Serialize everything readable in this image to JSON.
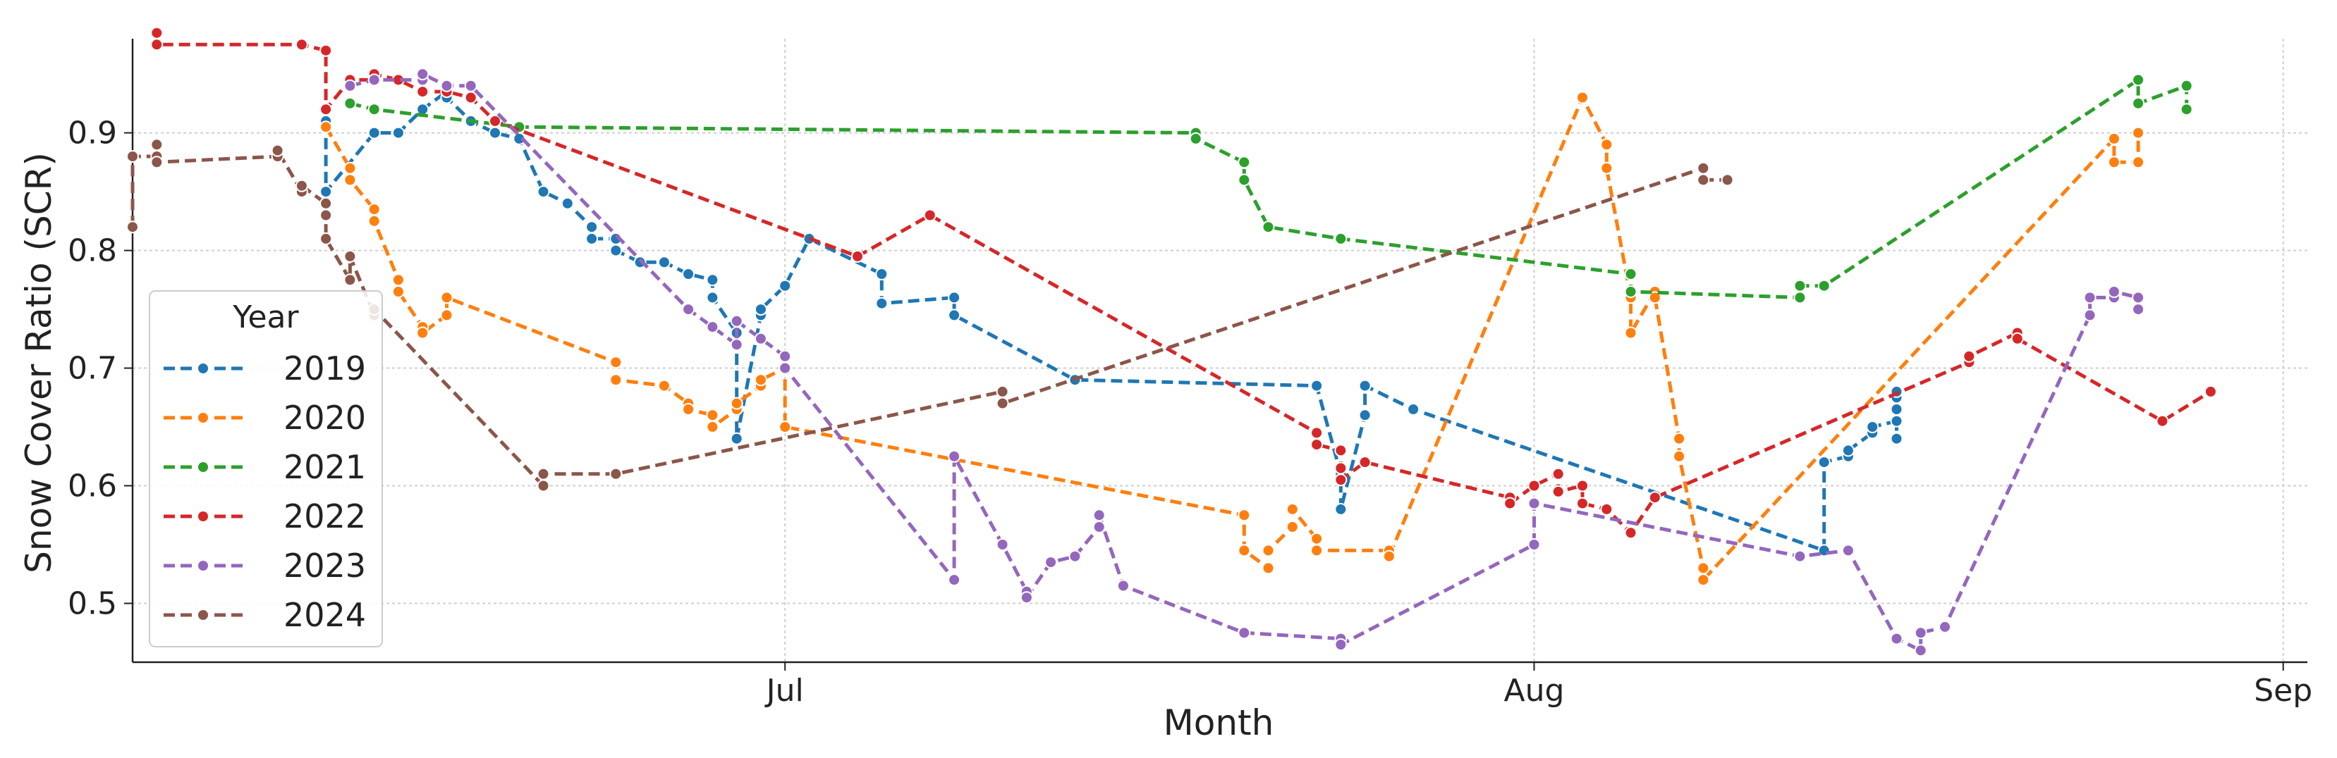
{
  "chart_data": {
    "type": "line",
    "xlabel": "Month",
    "ylabel": "Snow Cover Ratio (SCR)",
    "x_is_date": true,
    "xlim": [
      "06-04",
      "09-02"
    ],
    "ylim": [
      0.45,
      0.98
    ],
    "x_ticks": [
      {
        "x": "07-01",
        "label": "Jul"
      },
      {
        "x": "08-01",
        "label": "Aug"
      },
      {
        "x": "09-01",
        "label": "Sep"
      }
    ],
    "y_ticks": [
      0.5,
      0.6,
      0.7,
      0.8,
      0.9
    ],
    "grid": true,
    "legend": {
      "title": "Year",
      "position": "left"
    },
    "series": [
      {
        "name": "2019",
        "color": "#1f77b4",
        "points": [
          [
            "06-12",
            0.91
          ],
          [
            "06-12",
            0.85
          ],
          [
            "06-14",
            0.9
          ],
          [
            "06-15",
            0.9
          ],
          [
            "06-16",
            0.92
          ],
          [
            "06-17",
            0.935
          ],
          [
            "06-17",
            0.93
          ],
          [
            "06-18",
            0.91
          ],
          [
            "06-19",
            0.9
          ],
          [
            "06-20",
            0.895
          ],
          [
            "06-21",
            0.85
          ],
          [
            "06-22",
            0.84
          ],
          [
            "06-23",
            0.82
          ],
          [
            "06-23",
            0.81
          ],
          [
            "06-24",
            0.81
          ],
          [
            "06-24",
            0.8
          ],
          [
            "06-25",
            0.79
          ],
          [
            "06-26",
            0.79
          ],
          [
            "06-27",
            0.78
          ],
          [
            "06-28",
            0.775
          ],
          [
            "06-28",
            0.76
          ],
          [
            "06-29",
            0.73
          ],
          [
            "06-29",
            0.64
          ],
          [
            "06-30",
            0.745
          ],
          [
            "06-30",
            0.75
          ],
          [
            "07-01",
            0.77
          ],
          [
            "07-02",
            0.81
          ],
          [
            "07-05",
            0.78
          ],
          [
            "07-05",
            0.755
          ],
          [
            "07-08",
            0.76
          ],
          [
            "07-08",
            0.745
          ],
          [
            "07-13",
            0.69
          ],
          [
            "07-23",
            0.685
          ],
          [
            "07-24",
            0.61
          ],
          [
            "07-24",
            0.58
          ],
          [
            "07-25",
            0.66
          ],
          [
            "07-25",
            0.685
          ],
          [
            "07-27",
            0.665
          ],
          [
            "08-13",
            0.545
          ],
          [
            "08-13",
            0.62
          ],
          [
            "08-14",
            0.625
          ],
          [
            "08-14",
            0.63
          ],
          [
            "08-15",
            0.645
          ],
          [
            "08-15",
            0.65
          ],
          [
            "08-16",
            0.655
          ],
          [
            "08-16",
            0.665
          ],
          [
            "08-16",
            0.675
          ],
          [
            "08-16",
            0.68
          ],
          [
            "08-16",
            0.64
          ]
        ]
      },
      {
        "name": "2020",
        "color": "#ff7f0e",
        "points": [
          [
            "06-12",
            0.905
          ],
          [
            "06-13",
            0.87
          ],
          [
            "06-13",
            0.86
          ],
          [
            "06-14",
            0.835
          ],
          [
            "06-14",
            0.825
          ],
          [
            "06-15",
            0.775
          ],
          [
            "06-15",
            0.765
          ],
          [
            "06-16",
            0.735
          ],
          [
            "06-16",
            0.73
          ],
          [
            "06-17",
            0.745
          ],
          [
            "06-17",
            0.76
          ],
          [
            "06-24",
            0.705
          ],
          [
            "06-24",
            0.69
          ],
          [
            "06-26",
            0.685
          ],
          [
            "06-27",
            0.67
          ],
          [
            "06-27",
            0.665
          ],
          [
            "06-28",
            0.66
          ],
          [
            "06-28",
            0.65
          ],
          [
            "06-29",
            0.665
          ],
          [
            "06-29",
            0.67
          ],
          [
            "06-30",
            0.685
          ],
          [
            "06-30",
            0.69
          ],
          [
            "07-01",
            0.7
          ],
          [
            "07-01",
            0.65
          ],
          [
            "07-20",
            0.575
          ],
          [
            "07-20",
            0.545
          ],
          [
            "07-21",
            0.53
          ],
          [
            "07-21",
            0.545
          ],
          [
            "07-22",
            0.565
          ],
          [
            "07-22",
            0.58
          ],
          [
            "07-23",
            0.555
          ],
          [
            "07-23",
            0.545
          ],
          [
            "07-26",
            0.545
          ],
          [
            "07-26",
            0.54
          ],
          [
            "08-03",
            0.93
          ],
          [
            "08-04",
            0.89
          ],
          [
            "08-04",
            0.87
          ],
          [
            "08-05",
            0.76
          ],
          [
            "08-05",
            0.73
          ],
          [
            "08-06",
            0.765
          ],
          [
            "08-06",
            0.76
          ],
          [
            "08-07",
            0.64
          ],
          [
            "08-07",
            0.625
          ],
          [
            "08-08",
            0.53
          ],
          [
            "08-08",
            0.52
          ],
          [
            "08-25",
            0.895
          ],
          [
            "08-25",
            0.875
          ],
          [
            "08-26",
            0.875
          ],
          [
            "08-26",
            0.9
          ]
        ]
      },
      {
        "name": "2021",
        "color": "#2ca02c",
        "points": [
          [
            "06-13",
            0.925
          ],
          [
            "06-14",
            0.92
          ],
          [
            "06-20",
            0.905
          ],
          [
            "07-18",
            0.9
          ],
          [
            "07-18",
            0.895
          ],
          [
            "07-20",
            0.875
          ],
          [
            "07-20",
            0.86
          ],
          [
            "07-21",
            0.82
          ],
          [
            "07-24",
            0.81
          ],
          [
            "08-05",
            0.78
          ],
          [
            "08-05",
            0.765
          ],
          [
            "08-12",
            0.76
          ],
          [
            "08-12",
            0.77
          ],
          [
            "08-13",
            0.77
          ],
          [
            "08-26",
            0.945
          ],
          [
            "08-26",
            0.925
          ],
          [
            "08-28",
            0.94
          ],
          [
            "08-28",
            0.92
          ]
        ]
      },
      {
        "name": "2022",
        "color": "#d62728",
        "points": [
          [
            "06-05",
            0.985
          ],
          [
            "06-05",
            0.975
          ],
          [
            "06-11",
            0.975
          ],
          [
            "06-12",
            0.97
          ],
          [
            "06-12",
            0.92
          ],
          [
            "06-13",
            0.945
          ],
          [
            "06-14",
            0.945
          ],
          [
            "06-14",
            0.95
          ],
          [
            "06-15",
            0.945
          ],
          [
            "06-16",
            0.935
          ],
          [
            "06-17",
            0.935
          ],
          [
            "06-18",
            0.93
          ],
          [
            "06-19",
            0.91
          ],
          [
            "07-04",
            0.795
          ],
          [
            "07-07",
            0.83
          ],
          [
            "07-23",
            0.645
          ],
          [
            "07-23",
            0.635
          ],
          [
            "07-24",
            0.63
          ],
          [
            "07-24",
            0.615
          ],
          [
            "07-24",
            0.605
          ],
          [
            "07-25",
            0.62
          ],
          [
            "07-31",
            0.59
          ],
          [
            "07-31",
            0.585
          ],
          [
            "08-01",
            0.6
          ],
          [
            "08-02",
            0.61
          ],
          [
            "08-02",
            0.595
          ],
          [
            "08-03",
            0.6
          ],
          [
            "08-03",
            0.585
          ],
          [
            "08-04",
            0.58
          ],
          [
            "08-05",
            0.56
          ],
          [
            "08-06",
            0.59
          ],
          [
            "08-19",
            0.705
          ],
          [
            "08-19",
            0.71
          ],
          [
            "08-21",
            0.73
          ],
          [
            "08-21",
            0.725
          ],
          [
            "08-27",
            0.655
          ],
          [
            "08-29",
            0.68
          ]
        ]
      },
      {
        "name": "2023",
        "color": "#9467bd",
        "points": [
          [
            "06-13",
            0.94
          ],
          [
            "06-14",
            0.945
          ],
          [
            "06-16",
            0.945
          ],
          [
            "06-16",
            0.95
          ],
          [
            "06-17",
            0.94
          ],
          [
            "06-18",
            0.94
          ],
          [
            "06-27",
            0.75
          ],
          [
            "06-28",
            0.735
          ],
          [
            "06-29",
            0.72
          ],
          [
            "06-29",
            0.74
          ],
          [
            "06-30",
            0.725
          ],
          [
            "07-01",
            0.71
          ],
          [
            "07-01",
            0.7
          ],
          [
            "07-08",
            0.52
          ],
          [
            "07-08",
            0.625
          ],
          [
            "07-10",
            0.55
          ],
          [
            "07-11",
            0.51
          ],
          [
            "07-11",
            0.505
          ],
          [
            "07-12",
            0.535
          ],
          [
            "07-13",
            0.54
          ],
          [
            "07-14",
            0.565
          ],
          [
            "07-14",
            0.575
          ],
          [
            "07-15",
            0.515
          ],
          [
            "07-20",
            0.475
          ],
          [
            "07-24",
            0.47
          ],
          [
            "07-24",
            0.465
          ],
          [
            "08-01",
            0.55
          ],
          [
            "08-01",
            0.585
          ],
          [
            "08-12",
            0.54
          ],
          [
            "08-14",
            0.545
          ],
          [
            "08-16",
            0.47
          ],
          [
            "08-17",
            0.46
          ],
          [
            "08-17",
            0.475
          ],
          [
            "08-18",
            0.48
          ],
          [
            "08-24",
            0.745
          ],
          [
            "08-24",
            0.76
          ],
          [
            "08-25",
            0.76
          ],
          [
            "08-25",
            0.765
          ],
          [
            "08-26",
            0.76
          ],
          [
            "08-26",
            0.75
          ]
        ]
      },
      {
        "name": "2024",
        "color": "#8c564b",
        "points": [
          [
            "06-04",
            0.82
          ],
          [
            "06-04",
            0.88
          ],
          [
            "06-05",
            0.88
          ],
          [
            "06-05",
            0.89
          ],
          [
            "06-05",
            0.875
          ],
          [
            "06-10",
            0.88
          ],
          [
            "06-10",
            0.885
          ],
          [
            "06-11",
            0.85
          ],
          [
            "06-11",
            0.855
          ],
          [
            "06-12",
            0.84
          ],
          [
            "06-12",
            0.83
          ],
          [
            "06-12",
            0.81
          ],
          [
            "06-13",
            0.775
          ],
          [
            "06-13",
            0.795
          ],
          [
            "06-14",
            0.745
          ],
          [
            "06-14",
            0.75
          ],
          [
            "06-21",
            0.6
          ],
          [
            "06-21",
            0.61
          ],
          [
            "06-24",
            0.61
          ],
          [
            "07-10",
            0.68
          ],
          [
            "07-10",
            0.67
          ],
          [
            "08-08",
            0.87
          ],
          [
            "08-08",
            0.86
          ],
          [
            "08-09",
            0.86
          ]
        ]
      }
    ]
  }
}
